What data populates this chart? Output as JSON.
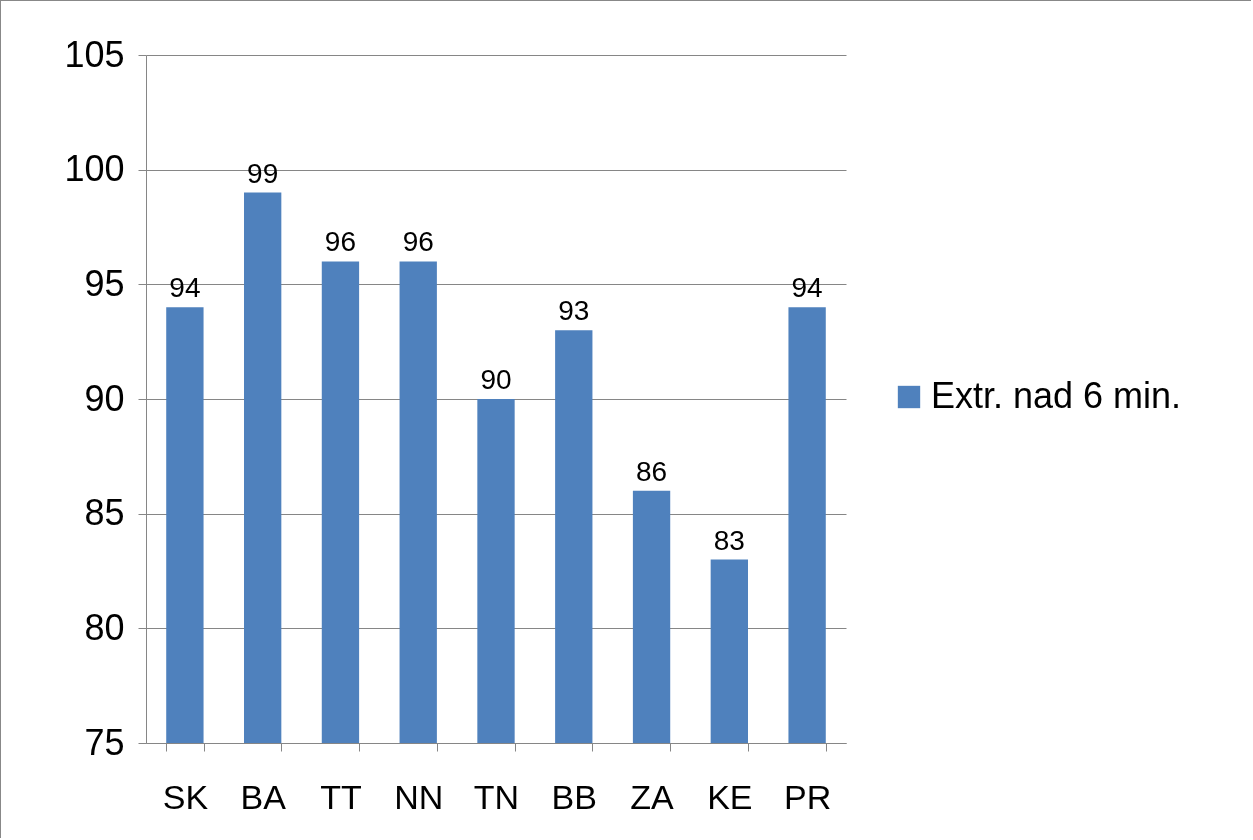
{
  "chart_data": {
    "type": "bar",
    "categories": [
      "SK",
      "BA",
      "TT",
      "NN",
      "TN",
      "BB",
      "ZA",
      "KE",
      "PR"
    ],
    "series": [
      {
        "name": "Extr. nad 6 min.",
        "color": "#4f81bd",
        "values": [
          94,
          99,
          96,
          96,
          90,
          93,
          86,
          83,
          94
        ]
      }
    ],
    "ylim": [
      75,
      105
    ],
    "yticks": [
      75,
      80,
      85,
      90,
      95,
      100,
      105
    ],
    "grid": "y",
    "legend": "right",
    "data_labels": true
  }
}
